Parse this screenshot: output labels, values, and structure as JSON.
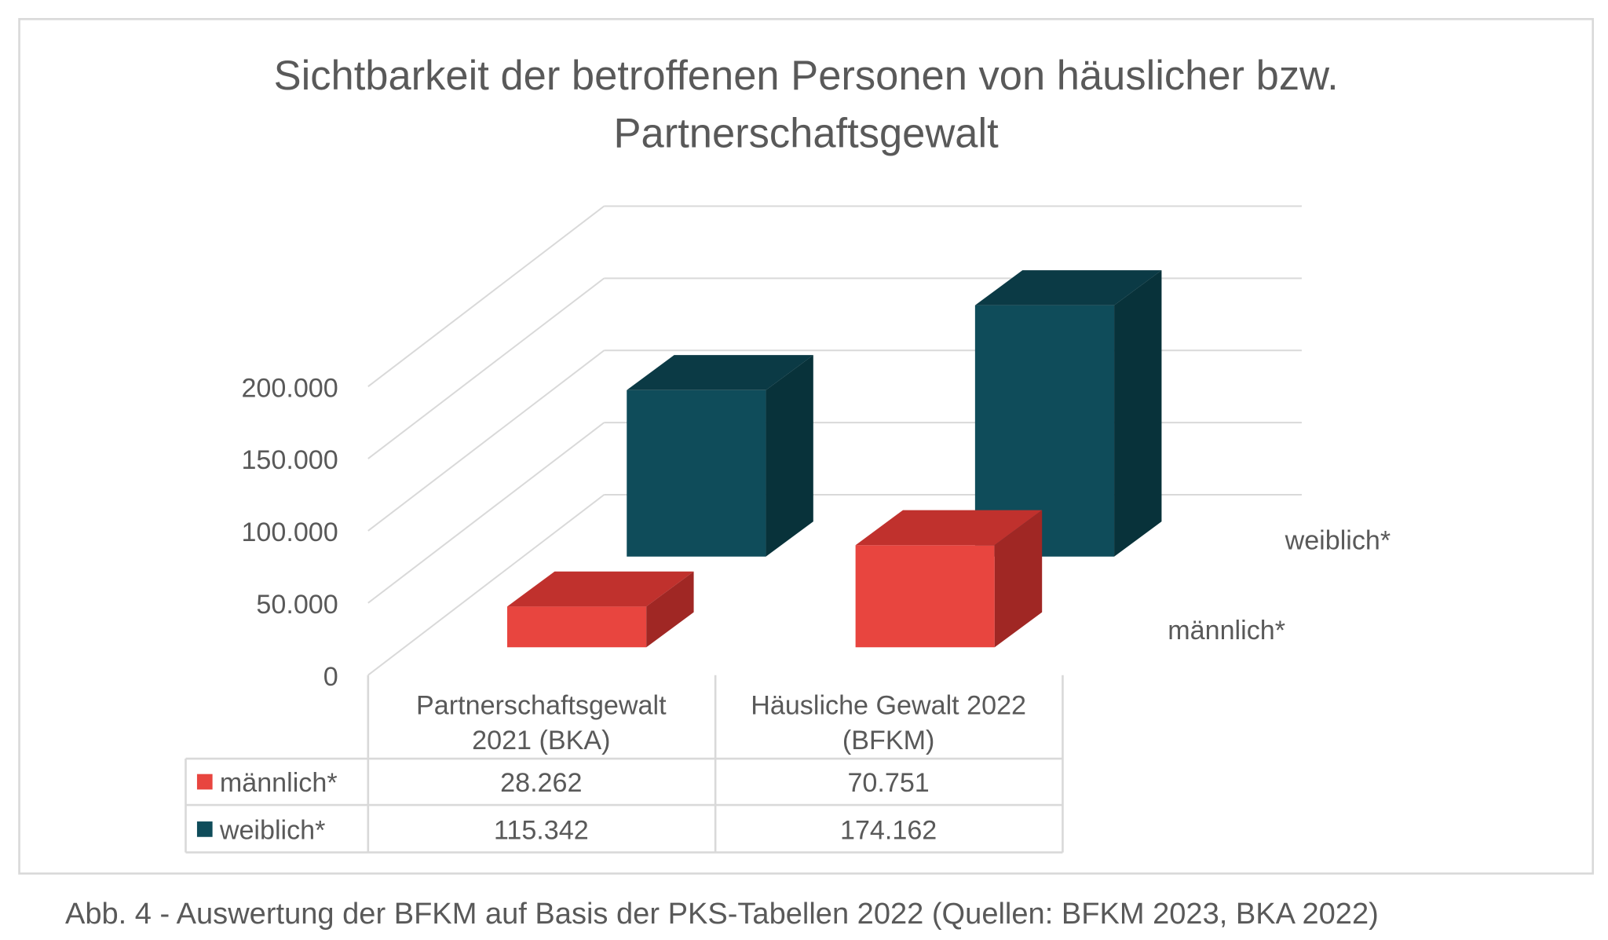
{
  "chart_data": {
    "type": "bar",
    "variant": "3d-clustered-column-with-data-table",
    "title": "Sichtbarkeit der betroffenen Personen von häuslicher bzw. Partnerschaftsgewalt",
    "title_lines": [
      "Sichtbarkeit der betroffenen Personen von häuslicher bzw.",
      "Partnerschaftsgewalt"
    ],
    "categories": [
      "Partnerschaftsgewalt 2021 (BKA)",
      "Häusliche Gewalt 2022 (BFKM)"
    ],
    "category_lines": [
      [
        "Partnerschaftsgewalt",
        "2021 (BKA)"
      ],
      [
        "Häusliche Gewalt 2022",
        "(BFKM)"
      ]
    ],
    "series": [
      {
        "name": "männlich*",
        "values": [
          28262,
          70751
        ],
        "display": [
          "28.262",
          "70.751"
        ],
        "color": "#e8453f"
      },
      {
        "name": "weiblich*",
        "values": [
          115342,
          174162
        ],
        "display": [
          "115.342",
          "174.162"
        ],
        "color": "#0f4c5a"
      }
    ],
    "yticks": [
      "0",
      "50.000",
      "100.000",
      "150.000",
      "200.000"
    ],
    "ytick_values": [
      0,
      50000,
      100000,
      150000,
      200000
    ],
    "ylim": [
      0,
      200000
    ],
    "grid": true,
    "legend": "data-table"
  },
  "caption": "Abb. 4 - Auswertung der BFKM auf Basis der PKS-Tabellen 2022 (Quellen: BFKM 2023, BKA 2022)"
}
